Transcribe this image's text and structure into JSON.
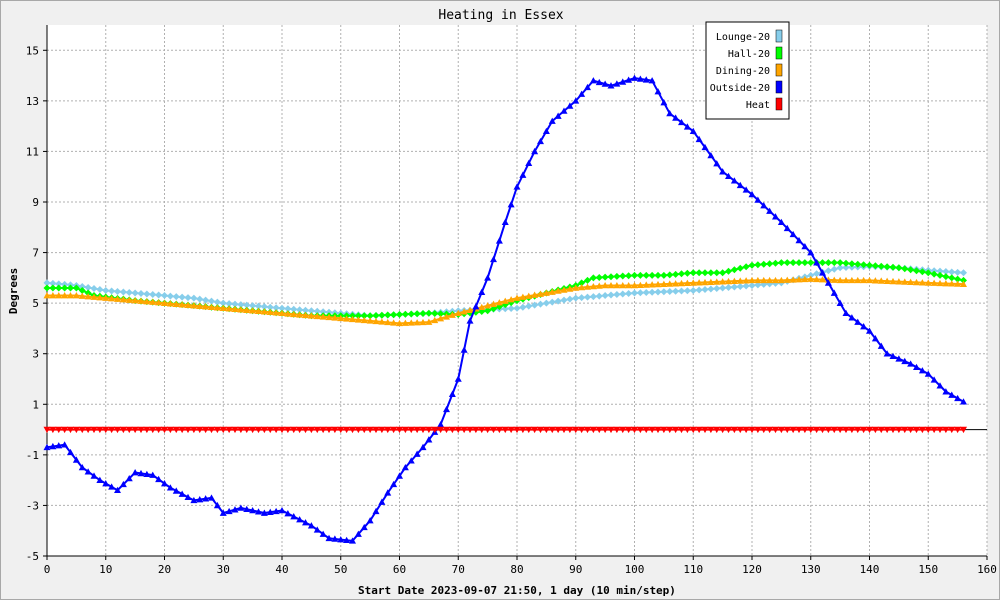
{
  "chart_data": {
    "type": "line",
    "title": "Heating in Essex",
    "xlabel": "Start Date 2023-09-07 21:50, 1 day (10 min/step)",
    "ylabel": "Degrees",
    "xlim": [
      0,
      160
    ],
    "ylim": [
      -5,
      16
    ],
    "x_ticks": [
      0,
      10,
      20,
      30,
      40,
      50,
      60,
      70,
      80,
      90,
      100,
      110,
      120,
      130,
      140,
      150,
      160
    ],
    "y_ticks": [
      -5,
      -3,
      -1,
      1,
      3,
      5,
      7,
      9,
      11,
      13,
      15
    ],
    "grid": true,
    "legend_position": "top-right",
    "series": [
      {
        "name": "Lounge-20",
        "color": "#87ceeb",
        "marker": "diamond",
        "points": [
          [
            0,
            5.8
          ],
          [
            5,
            5.7
          ],
          [
            10,
            5.5
          ],
          [
            15,
            5.4
          ],
          [
            20,
            5.3
          ],
          [
            25,
            5.2
          ],
          [
            30,
            5.0
          ],
          [
            35,
            4.9
          ],
          [
            40,
            4.8
          ],
          [
            45,
            4.7
          ],
          [
            50,
            4.6
          ],
          [
            55,
            4.5
          ],
          [
            60,
            4.55
          ],
          [
            65,
            4.6
          ],
          [
            70,
            4.7
          ],
          [
            75,
            4.75
          ],
          [
            80,
            4.8
          ],
          [
            85,
            5.0
          ],
          [
            90,
            5.2
          ],
          [
            95,
            5.3
          ],
          [
            100,
            5.4
          ],
          [
            105,
            5.45
          ],
          [
            110,
            5.5
          ],
          [
            115,
            5.6
          ],
          [
            120,
            5.7
          ],
          [
            125,
            5.8
          ],
          [
            130,
            6.1
          ],
          [
            135,
            6.4
          ],
          [
            140,
            6.45
          ],
          [
            145,
            6.4
          ],
          [
            150,
            6.3
          ],
          [
            156,
            6.2
          ]
        ]
      },
      {
        "name": "Hall-20",
        "color": "#00ff00",
        "marker": "diamond",
        "points": [
          [
            0,
            5.6
          ],
          [
            5,
            5.6
          ],
          [
            8,
            5.3
          ],
          [
            15,
            5.1
          ],
          [
            20,
            5.0
          ],
          [
            25,
            4.9
          ],
          [
            30,
            4.8
          ],
          [
            35,
            4.7
          ],
          [
            40,
            4.6
          ],
          [
            45,
            4.5
          ],
          [
            50,
            4.5
          ],
          [
            55,
            4.5
          ],
          [
            60,
            4.55
          ],
          [
            65,
            4.6
          ],
          [
            70,
            4.55
          ],
          [
            75,
            4.7
          ],
          [
            80,
            5.1
          ],
          [
            85,
            5.4
          ],
          [
            90,
            5.7
          ],
          [
            93,
            6.0
          ],
          [
            100,
            6.1
          ],
          [
            105,
            6.1
          ],
          [
            110,
            6.2
          ],
          [
            115,
            6.2
          ],
          [
            120,
            6.5
          ],
          [
            125,
            6.6
          ],
          [
            130,
            6.6
          ],
          [
            135,
            6.6
          ],
          [
            140,
            6.5
          ],
          [
            145,
            6.4
          ],
          [
            150,
            6.2
          ],
          [
            156,
            5.9
          ]
        ]
      },
      {
        "name": "Dining-20",
        "color": "#ffa500",
        "marker": "triangle-up",
        "points": [
          [
            0,
            5.3
          ],
          [
            5,
            5.3
          ],
          [
            10,
            5.2
          ],
          [
            15,
            5.1
          ],
          [
            20,
            5.0
          ],
          [
            25,
            4.9
          ],
          [
            30,
            4.8
          ],
          [
            35,
            4.7
          ],
          [
            40,
            4.6
          ],
          [
            45,
            4.5
          ],
          [
            50,
            4.4
          ],
          [
            55,
            4.3
          ],
          [
            60,
            4.2
          ],
          [
            65,
            4.25
          ],
          [
            70,
            4.6
          ],
          [
            75,
            4.9
          ],
          [
            80,
            5.2
          ],
          [
            85,
            5.4
          ],
          [
            90,
            5.6
          ],
          [
            95,
            5.7
          ],
          [
            100,
            5.7
          ],
          [
            105,
            5.75
          ],
          [
            110,
            5.8
          ],
          [
            115,
            5.85
          ],
          [
            120,
            5.9
          ],
          [
            125,
            5.9
          ],
          [
            130,
            5.95
          ],
          [
            135,
            5.9
          ],
          [
            140,
            5.9
          ],
          [
            145,
            5.85
          ],
          [
            150,
            5.8
          ],
          [
            156,
            5.75
          ]
        ]
      },
      {
        "name": "Outside-20",
        "color": "#0000ff",
        "marker": "triangle-up",
        "points": [
          [
            0,
            -0.7
          ],
          [
            3,
            -0.6
          ],
          [
            6,
            -1.5
          ],
          [
            9,
            -2.0
          ],
          [
            12,
            -2.4
          ],
          [
            15,
            -1.7
          ],
          [
            18,
            -1.8
          ],
          [
            21,
            -2.3
          ],
          [
            25,
            -2.8
          ],
          [
            28,
            -2.7
          ],
          [
            30,
            -3.3
          ],
          [
            33,
            -3.1
          ],
          [
            37,
            -3.3
          ],
          [
            40,
            -3.2
          ],
          [
            45,
            -3.8
          ],
          [
            48,
            -4.3
          ],
          [
            52,
            -4.4
          ],
          [
            55,
            -3.6
          ],
          [
            58,
            -2.5
          ],
          [
            61,
            -1.5
          ],
          [
            64,
            -0.7
          ],
          [
            67,
            0.2
          ],
          [
            70,
            2.0
          ],
          [
            72,
            4.3
          ],
          [
            75,
            6.0
          ],
          [
            78,
            8.2
          ],
          [
            80,
            9.6
          ],
          [
            83,
            11.0
          ],
          [
            86,
            12.2
          ],
          [
            90,
            13.0
          ],
          [
            93,
            13.8
          ],
          [
            96,
            13.6
          ],
          [
            100,
            13.9
          ],
          [
            103,
            13.8
          ],
          [
            106,
            12.5
          ],
          [
            110,
            11.8
          ],
          [
            115,
            10.2
          ],
          [
            120,
            9.3
          ],
          [
            125,
            8.2
          ],
          [
            130,
            7.0
          ],
          [
            133,
            5.8
          ],
          [
            136,
            4.6
          ],
          [
            140,
            3.9
          ],
          [
            143,
            3.0
          ],
          [
            147,
            2.6
          ],
          [
            150,
            2.2
          ],
          [
            153,
            1.5
          ],
          [
            156,
            1.1
          ]
        ]
      },
      {
        "name": "Heat",
        "color": "#ff0000",
        "marker": "triangle-down",
        "points": [
          [
            0,
            0
          ],
          [
            156,
            0
          ]
        ]
      }
    ]
  }
}
